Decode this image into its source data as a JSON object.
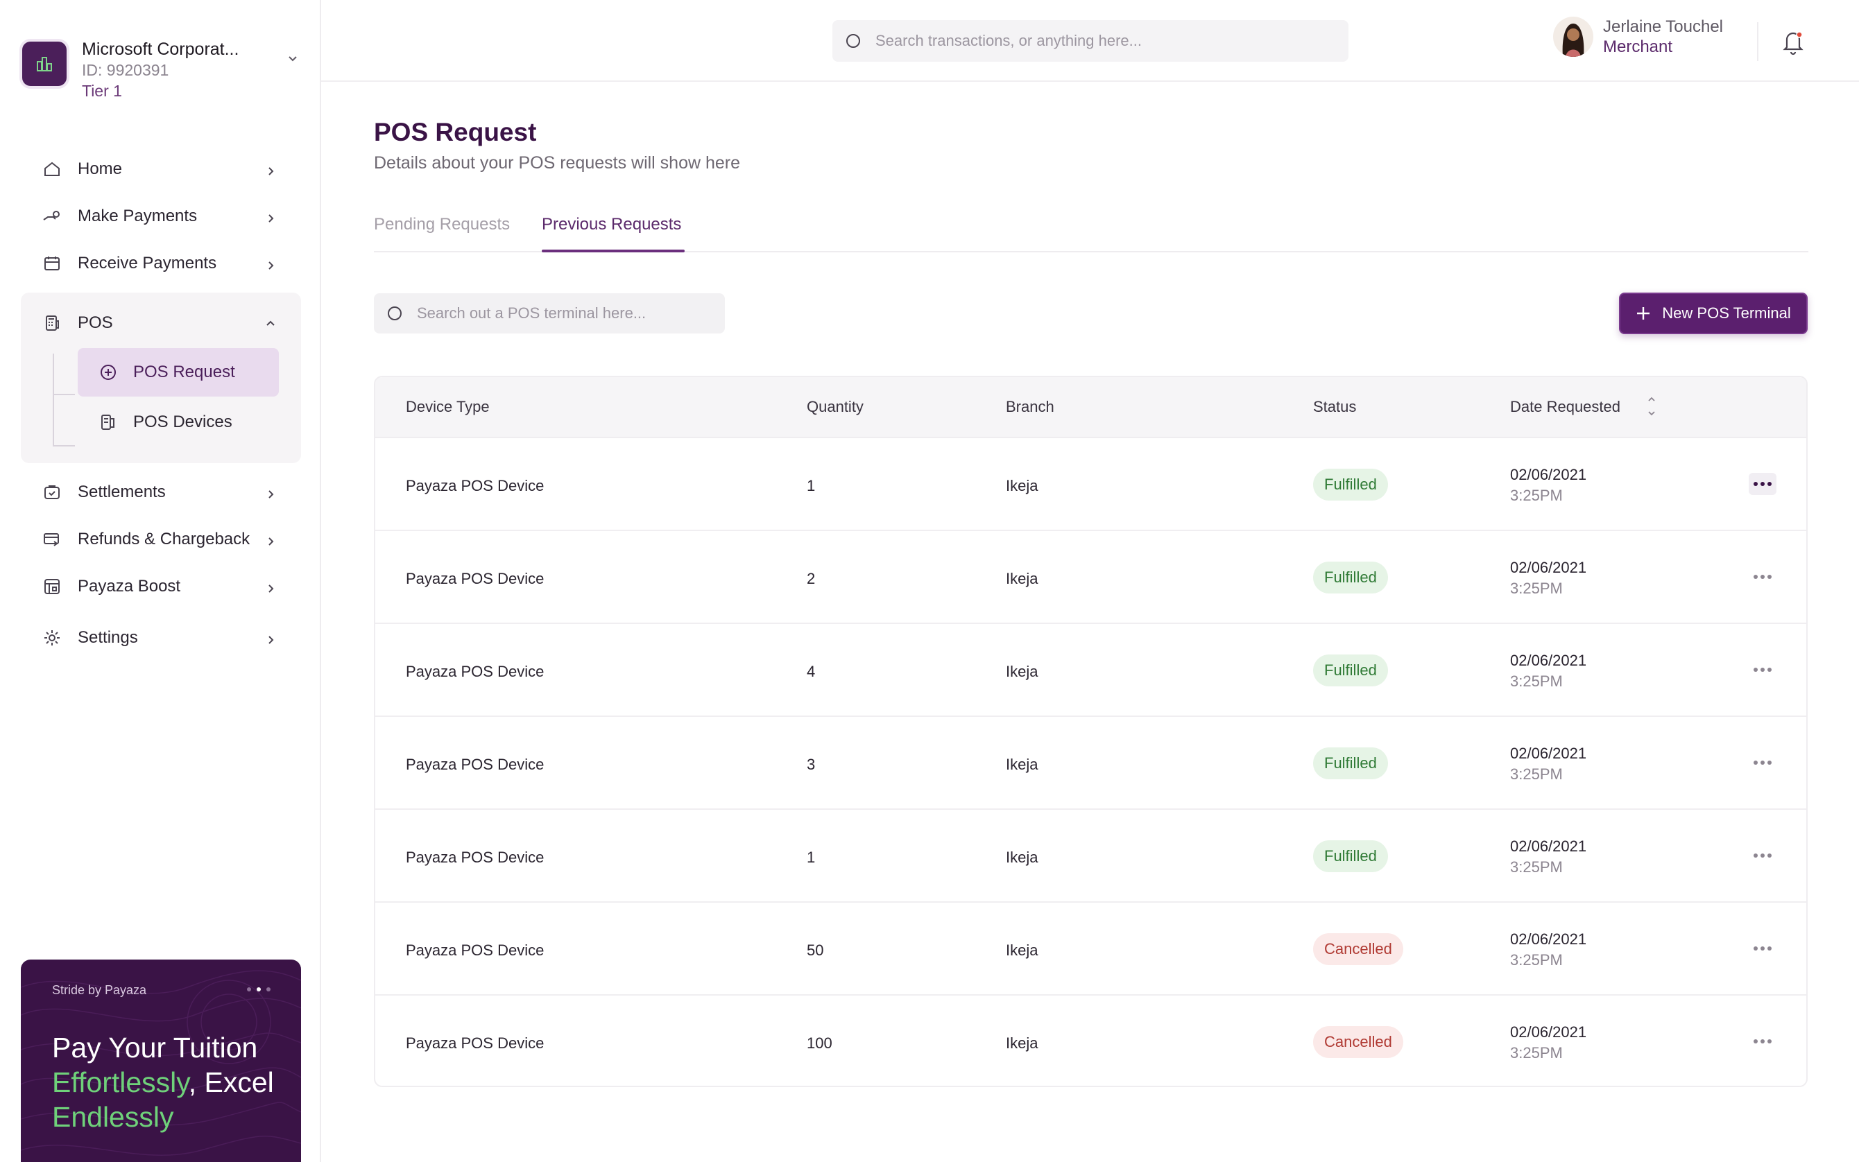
{
  "org": {
    "name": "Microsoft Corporat...",
    "id": "ID: 9920391",
    "tier": "Tier 1"
  },
  "nav": {
    "home": "Home",
    "make_payments": "Make Payments",
    "receive_payments": "Receive Payments",
    "pos": "POS",
    "pos_request": "POS Request",
    "pos_devices": "POS Devices",
    "settlements": "Settlements",
    "refunds": "Refunds & Chargeback",
    "boost": "Payaza Boost",
    "settings": "Settings"
  },
  "promo": {
    "brand": "Stride by Payaza",
    "title_part1": "Pay Your Tuition",
    "title_green1": "Effortlessly",
    "title_part2": ", Excel",
    "title_green2": "Endlessly"
  },
  "topbar": {
    "search_placeholder": "Search transactions, or anything here...",
    "user_name": "Jerlaine Touchel",
    "user_role": "Merchant"
  },
  "page": {
    "title": "POS Request",
    "subtitle": "Details about your POS requests will show here",
    "tabs": [
      "Pending Requests",
      "Previous Requests"
    ],
    "active_tab": "Previous Requests",
    "table_search_placeholder": "Search out a POS terminal here...",
    "new_button": "New POS Terminal"
  },
  "table": {
    "headers": [
      "Device Type",
      "Quantity",
      "Branch",
      "Status",
      "Date Requested"
    ],
    "rows": [
      {
        "device": "Payaza POS Device",
        "qty": "1",
        "branch": "Ikeja",
        "status": "Fulfilled",
        "date": "02/06/2021",
        "time": "3:25PM"
      },
      {
        "device": "Payaza POS Device",
        "qty": "2",
        "branch": "Ikeja",
        "status": "Fulfilled",
        "date": "02/06/2021",
        "time": "3:25PM"
      },
      {
        "device": "Payaza POS Device",
        "qty": "4",
        "branch": "Ikeja",
        "status": "Fulfilled",
        "date": "02/06/2021",
        "time": "3:25PM"
      },
      {
        "device": "Payaza POS Device",
        "qty": "3",
        "branch": "Ikeja",
        "status": "Fulfilled",
        "date": "02/06/2021",
        "time": "3:25PM"
      },
      {
        "device": "Payaza POS Device",
        "qty": "1",
        "branch": "Ikeja",
        "status": "Fulfilled",
        "date": "02/06/2021",
        "time": "3:25PM"
      },
      {
        "device": "Payaza POS Device",
        "qty": "50",
        "branch": "Ikeja",
        "status": "Cancelled",
        "date": "02/06/2021",
        "time": "3:25PM"
      },
      {
        "device": "Payaza POS Device",
        "qty": "100",
        "branch": "Ikeja",
        "status": "Cancelled",
        "date": "02/06/2021",
        "time": "3:25PM"
      }
    ]
  },
  "colors": {
    "brand": "#5b1f6e",
    "fulfilled_bg": "#e6f4e6",
    "fulfilled_text": "#2f7a35",
    "cancelled_bg": "#fbe9e8",
    "cancelled_text": "#b03a33",
    "promo_green": "#6fd17a"
  }
}
